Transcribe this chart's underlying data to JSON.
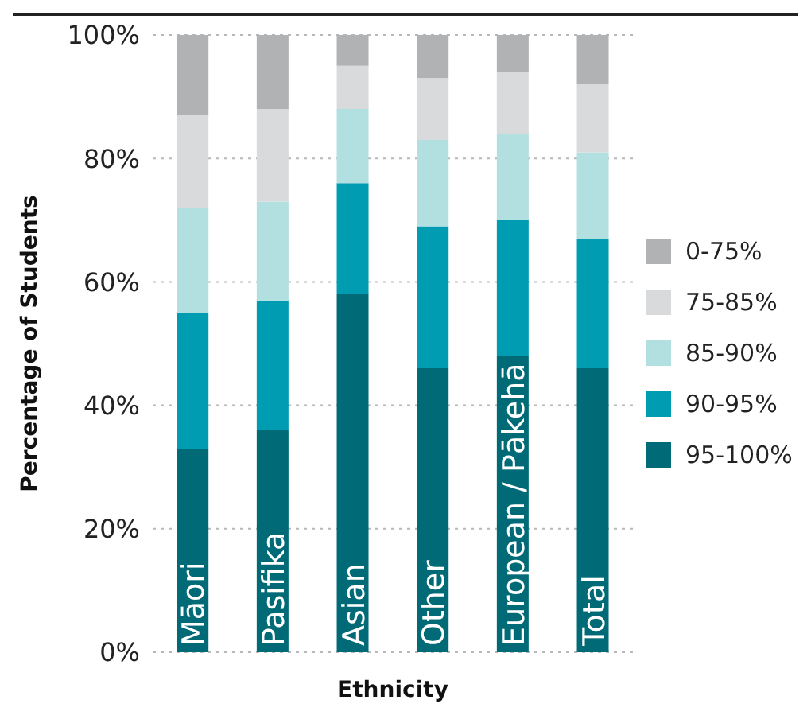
{
  "chart_data": {
    "type": "bar",
    "stacked": true,
    "xlabel": "Ethnicity",
    "ylabel": "Percentage of Students",
    "categories": [
      "Māori",
      "Pasifika",
      "Asian",
      "Other",
      "European / Pākehā",
      "Total"
    ],
    "series": [
      {
        "name": "95-100%",
        "color": "#006b77",
        "values": [
          33,
          36,
          58,
          46,
          48,
          46
        ]
      },
      {
        "name": "90-95%",
        "color": "#009db2",
        "values": [
          22,
          21,
          18,
          23,
          22,
          21
        ]
      },
      {
        "name": "85-90%",
        "color": "#b2dfdf",
        "values": [
          17,
          16,
          12,
          14,
          14,
          14
        ]
      },
      {
        "name": "75-85%",
        "color": "#d9dadc",
        "values": [
          15,
          15,
          7,
          10,
          10,
          11
        ]
      },
      {
        "name": "0-75%",
        "color": "#b1b2b4",
        "values": [
          13,
          12,
          5,
          7,
          6,
          8
        ]
      }
    ],
    "ylim": [
      0,
      100
    ],
    "yticks": [
      {
        "value": 0,
        "label": "0%"
      },
      {
        "value": 20,
        "label": "20%"
      },
      {
        "value": 40,
        "label": "40%"
      },
      {
        "value": 60,
        "label": "60%"
      },
      {
        "value": 80,
        "label": "80%"
      },
      {
        "value": 100,
        "label": "100%"
      }
    ],
    "grid": "y",
    "legend": "right"
  }
}
